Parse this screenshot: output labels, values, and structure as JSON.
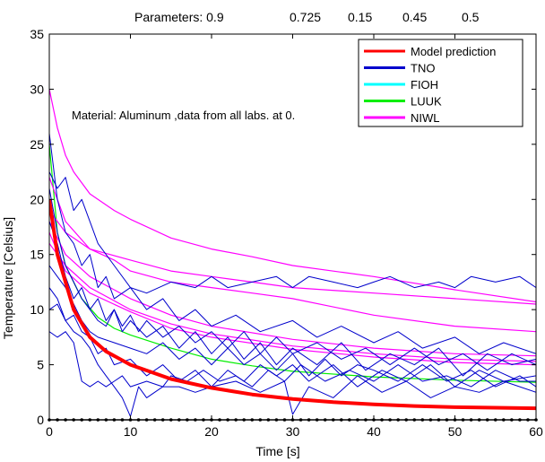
{
  "parameters": {
    "label": "Parameters: 0.9",
    "values": [
      "0.725",
      "0.15",
      "0.45",
      "0.5"
    ]
  },
  "chart_data": {
    "type": "line",
    "annotation": "Material: Aluminum ,data from all labs. at 0.",
    "xlabel": "Time   [s]",
    "ylabel": "Temperature  [Celsius]",
    "xlim": [
      0,
      60
    ],
    "ylim": [
      0,
      35
    ],
    "x_ticks": [
      0,
      10,
      20,
      30,
      40,
      50,
      60
    ],
    "y_ticks": [
      0,
      5,
      10,
      15,
      20,
      25,
      30,
      35
    ],
    "grid": false,
    "legend_position": "top-right",
    "legend": [
      {
        "label": "Model prediction",
        "color": "#ff0000"
      },
      {
        "label": "TNO",
        "color": "#0000cc"
      },
      {
        "label": "FIOH",
        "color": "#00ffff"
      },
      {
        "label": "LUUK",
        "color": "#00ee00"
      },
      {
        "label": "NIWL",
        "color": "#ff00ff"
      }
    ],
    "series": [
      {
        "name": "Model prediction",
        "color": "#ff0000",
        "lineWidth": 4,
        "x": [
          0,
          1,
          2,
          3,
          5,
          7,
          10,
          15,
          20,
          25,
          30,
          35,
          40,
          45,
          50,
          55,
          60
        ],
        "y": [
          20,
          15,
          12.5,
          10,
          7.5,
          6.2,
          5,
          3.7,
          2.9,
          2.3,
          1.9,
          1.6,
          1.4,
          1.25,
          1.15,
          1.1,
          1.05
        ]
      },
      {
        "name": "LUUK",
        "color": "#00ee00",
        "lineWidth": 1.2,
        "x": [
          0,
          1,
          2,
          4,
          6,
          8,
          10,
          15,
          20,
          25,
          30,
          40,
          50,
          60
        ],
        "y": [
          25,
          17,
          14,
          11,
          9.3,
          8.3,
          7.7,
          6.5,
          5.5,
          4.9,
          4.4,
          3.9,
          3.6,
          3.4
        ]
      },
      {
        "name": "NIWL",
        "color": "#ff00ff",
        "lineWidth": 1.2,
        "x": [
          0,
          1,
          2,
          3,
          5,
          8,
          10,
          15,
          20,
          25,
          30,
          40,
          50,
          60
        ],
        "y": [
          30,
          26.5,
          24,
          22.5,
          20.5,
          19,
          18.2,
          16.5,
          15.5,
          14.8,
          14,
          13,
          11.8,
          10.7
        ]
      },
      {
        "name": "NIWL",
        "color": "#ff00ff",
        "lineWidth": 1.2,
        "x": [
          0,
          2,
          5,
          10,
          15,
          20,
          25,
          30,
          40,
          50,
          60
        ],
        "y": [
          19,
          17,
          15.5,
          14.5,
          13.5,
          13,
          12.5,
          12,
          11.5,
          11,
          10.5
        ]
      },
      {
        "name": "NIWL",
        "color": "#ff00ff",
        "lineWidth": 1.2,
        "x": [
          0,
          2,
          5,
          8,
          10,
          15,
          20,
          25,
          30,
          40,
          50,
          60
        ],
        "y": [
          22,
          18,
          15.5,
          14.5,
          13.5,
          12.5,
          12,
          11.5,
          11,
          9.5,
          8.5,
          8
        ]
      },
      {
        "name": "NIWL",
        "color": "#ff00ff",
        "lineWidth": 1.2,
        "x": [
          0,
          2,
          5,
          10,
          15,
          20,
          30,
          40,
          50,
          60
        ],
        "y": [
          18,
          15,
          13,
          11,
          9.5,
          8.5,
          7.3,
          6.5,
          6,
          5.8
        ]
      },
      {
        "name": "NIWL",
        "color": "#ff00ff",
        "lineWidth": 1.2,
        "x": [
          0,
          2,
          5,
          10,
          15,
          20,
          30,
          40,
          50,
          60
        ],
        "y": [
          16,
          14,
          12,
          10,
          8.7,
          7.8,
          6.7,
          6,
          5.5,
          5.3
        ]
      },
      {
        "name": "NIWL",
        "color": "#ff00ff",
        "lineWidth": 1.2,
        "x": [
          0,
          2,
          5,
          10,
          15,
          20,
          30,
          40,
          50,
          60
        ],
        "y": [
          17,
          13.5,
          11.5,
          9.8,
          8.3,
          7.5,
          6.4,
          5.7,
          5.2,
          5
        ]
      },
      {
        "name": "TNO",
        "color": "#0000cc",
        "lineWidth": 1,
        "x": [
          0,
          1,
          2,
          3,
          4,
          5,
          6,
          7,
          8,
          10,
          12,
          15,
          18,
          20,
          22,
          25,
          28,
          30,
          32,
          35,
          38,
          40,
          42,
          45,
          48,
          50,
          52,
          55,
          58,
          60
        ],
        "y": [
          26,
          20,
          17,
          16,
          14,
          15,
          12,
          13,
          11,
          12,
          11.5,
          12.5,
          12,
          13,
          12,
          12.5,
          13,
          12,
          13,
          12.5,
          12,
          12.5,
          13,
          12,
          12.5,
          12,
          13,
          12.5,
          13,
          12
        ]
      },
      {
        "name": "TNO",
        "color": "#0000cc",
        "lineWidth": 1,
        "x": [
          0,
          1,
          2,
          3,
          4,
          5,
          6,
          8,
          10,
          12,
          14,
          16,
          18,
          20,
          23,
          26,
          30,
          33,
          36,
          40,
          43,
          46,
          50,
          53,
          56,
          60
        ],
        "y": [
          22.5,
          21,
          22,
          19,
          20,
          18,
          16,
          14,
          12,
          10,
          11,
          9,
          10,
          8.5,
          9.5,
          8,
          9,
          7.5,
          8.5,
          7,
          8,
          6.5,
          7.5,
          6,
          7,
          6
        ]
      },
      {
        "name": "TNO",
        "color": "#0000cc",
        "lineWidth": 1,
        "x": [
          0,
          1,
          2,
          3,
          4,
          5,
          6,
          7,
          8,
          9,
          10,
          12,
          14,
          16,
          18,
          20,
          22,
          24,
          26,
          28,
          30,
          33,
          36,
          39,
          42,
          45,
          48,
          51,
          54,
          57,
          60
        ],
        "y": [
          21,
          17,
          14,
          12.5,
          11,
          10,
          9,
          8.5,
          10,
          8,
          9,
          7.5,
          8.5,
          6.5,
          8,
          6,
          7.5,
          5.5,
          7,
          5,
          6.5,
          5,
          7,
          4.5,
          6,
          5,
          6.5,
          4,
          6,
          5,
          5.5
        ]
      },
      {
        "name": "TNO",
        "color": "#0000cc",
        "lineWidth": 1,
        "x": [
          0,
          1,
          2,
          3,
          4,
          5,
          6,
          7,
          8,
          10,
          12,
          14,
          16,
          18,
          20,
          22,
          24,
          26,
          28,
          30,
          32,
          35,
          38,
          41,
          44,
          47,
          50,
          53,
          56,
          60
        ],
        "y": [
          10,
          10.5,
          9,
          9.5,
          8,
          7.5,
          6,
          6.5,
          5,
          5.5,
          4,
          5,
          3.5,
          4.5,
          3,
          4.5,
          3.5,
          5,
          4,
          5,
          3.5,
          5,
          3,
          4.5,
          3.5,
          5,
          3,
          4.5,
          3.5,
          4
        ]
      },
      {
        "name": "TNO",
        "color": "#0000cc",
        "lineWidth": 1,
        "x": [
          0,
          1,
          2,
          3,
          4,
          5,
          6,
          7,
          8,
          9,
          10,
          12,
          14,
          15,
          17,
          19,
          21,
          23,
          25,
          27,
          29,
          31,
          34,
          37,
          40,
          43,
          46,
          49,
          52,
          55,
          58,
          60
        ],
        "y": [
          8,
          7.5,
          8,
          7,
          3.5,
          3,
          3.5,
          3,
          3.5,
          4,
          3,
          3.5,
          3,
          4,
          3.5,
          4.5,
          3.5,
          4,
          3,
          4.5,
          3.5,
          5,
          3.5,
          4.5,
          3.5,
          5,
          3.5,
          4,
          3,
          4.5,
          3.5,
          3.5
        ]
      },
      {
        "name": "TNO",
        "color": "#0000cc",
        "lineWidth": 1,
        "x": [
          0,
          1,
          2,
          3,
          4,
          5,
          6,
          7,
          8,
          9,
          10,
          11,
          12,
          14,
          16,
          18,
          20,
          23,
          26,
          29,
          30,
          32,
          35,
          38,
          41,
          44,
          47,
          50,
          53,
          56,
          60
        ],
        "y": [
          12,
          11,
          9,
          8,
          7.5,
          6.5,
          5,
          4,
          3,
          2,
          0.3,
          3,
          2,
          3,
          3,
          2.5,
          3,
          3.5,
          2.5,
          3.5,
          0.5,
          3,
          2,
          4,
          2.5,
          3.5,
          2,
          3,
          2.5,
          3.5,
          2.5
        ]
      },
      {
        "name": "TNO",
        "color": "#0000cc",
        "lineWidth": 1,
        "x": [
          0,
          1,
          2,
          3,
          4,
          5,
          6,
          7,
          8,
          9,
          10,
          11,
          12,
          14,
          16,
          18,
          20,
          22,
          24,
          26,
          28,
          30,
          33,
          36,
          39,
          42,
          45,
          48,
          51,
          54,
          57,
          60
        ],
        "y": [
          18,
          16,
          13,
          11,
          12,
          10,
          11,
          9,
          10,
          8.5,
          9.5,
          8,
          9,
          7.5,
          8.5,
          7,
          8,
          6.5,
          8,
          6,
          7.5,
          6,
          7,
          5.5,
          6.5,
          5,
          6.5,
          5,
          6,
          4.5,
          6,
          5
        ]
      },
      {
        "name": "TNO",
        "color": "#0000cc",
        "lineWidth": 1,
        "x": [
          0,
          1,
          2,
          3,
          4,
          5,
          6,
          8,
          10,
          12,
          14,
          16,
          18,
          20,
          22,
          24,
          26,
          28,
          30,
          32,
          34,
          36,
          38,
          40,
          43,
          46,
          49,
          52,
          55,
          58,
          60
        ],
        "y": [
          14,
          13,
          12,
          10.5,
          9,
          8,
          7.5,
          7,
          6.5,
          6,
          7,
          5.5,
          6.5,
          5,
          6.5,
          5,
          6,
          4.5,
          6,
          4,
          5.5,
          4,
          5,
          4.5,
          3.5,
          5,
          3.5,
          4.5,
          3,
          4,
          3
        ]
      }
    ],
    "baseline": {
      "y": 0,
      "color": "#000000",
      "marker_spacing": 1
    }
  }
}
